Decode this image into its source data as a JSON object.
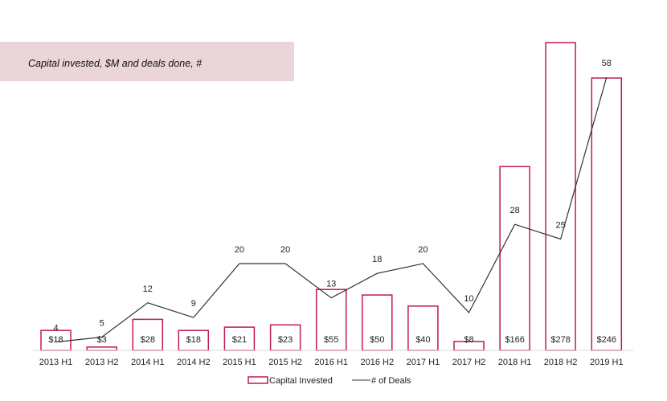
{
  "header": {
    "title": "Capital invested, $M and deals done, #"
  },
  "chart_data": {
    "type": "bar",
    "title": "",
    "categories": [
      "2013 H1",
      "2013 H2",
      "2014 H1",
      "2014 H2",
      "2015 H1",
      "2015 H2",
      "2016 H1",
      "2016 H2",
      "2017 H1",
      "2017 H2",
      "2018 H1",
      "2018 H2",
      "2019 H1"
    ],
    "series": [
      {
        "name": "Capital Invested",
        "type": "bar",
        "values": [
          18,
          3,
          28,
          18,
          21,
          23,
          55,
          50,
          40,
          8,
          166,
          278,
          246
        ],
        "labels": [
          "$18",
          "$3",
          "$28",
          "$18",
          "$21",
          "$23",
          "$55",
          "$50",
          "$40",
          "$8",
          "$166",
          "$278",
          "$246"
        ]
      },
      {
        "name": "# of Deals",
        "type": "line",
        "values": [
          4,
          5,
          12,
          9,
          20,
          20,
          13,
          18,
          20,
          10,
          28,
          25,
          58
        ],
        "labels": [
          "4",
          "5",
          "12",
          "9",
          "20",
          "20",
          "13",
          "18",
          "20",
          "10",
          "28",
          "25",
          "58"
        ]
      }
    ],
    "legend": "bottom-center",
    "grid": false,
    "colors": {
      "bar_stroke": "#c0185a",
      "line": "#333333",
      "header_band": "#ead6d9",
      "axis": "#d9d9d9"
    }
  }
}
